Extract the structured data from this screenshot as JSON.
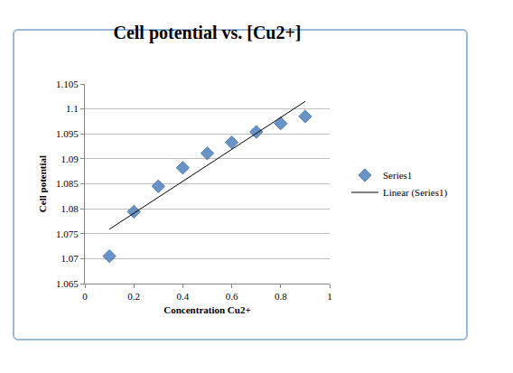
{
  "chart_data": {
    "type": "scatter",
    "title": "Cell potential vs. [Cu2+]",
    "x_label": "Concentration Cu2+",
    "y_label": "Cell potential",
    "series": [
      {
        "name": "Series1",
        "type": "scatter",
        "marker": "diamond",
        "color": "#4f81bd",
        "x": [
          0.1,
          0.2,
          0.3,
          0.4,
          0.5,
          0.6,
          0.7,
          0.8,
          0.9
        ],
        "values": [
          1.0705,
          1.0794,
          1.0845,
          1.0882,
          1.0911,
          1.0933,
          1.0954,
          1.0971,
          1.0985
        ]
      },
      {
        "name": "Linear (Series1)",
        "type": "line",
        "line_style": "solid",
        "color": "#000000",
        "x": [
          0.1,
          0.9
        ],
        "values": [
          1.0759,
          1.1015
        ]
      }
    ],
    "xlim": [
      0,
      1
    ],
    "xticks": [
      0,
      0.2,
      0.4,
      0.6,
      0.8,
      1
    ],
    "ylim": [
      1.065,
      1.105
    ],
    "yticks": [
      1.065,
      1.07,
      1.075,
      1.08,
      1.085,
      1.09,
      1.095,
      1.1,
      1.105
    ],
    "grid": "y",
    "legend": "right"
  }
}
